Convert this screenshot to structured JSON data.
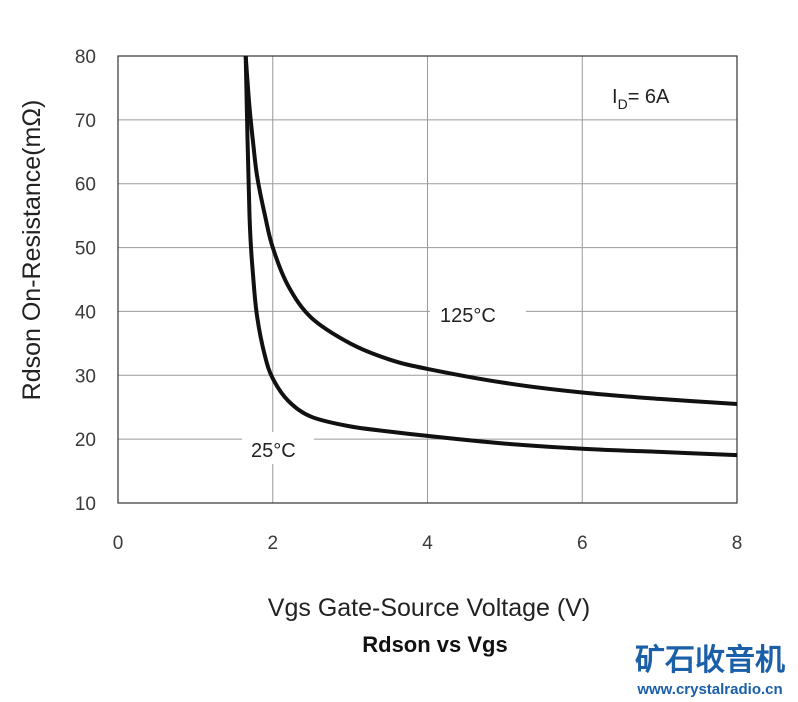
{
  "chart_data": {
    "type": "line",
    "title": "Rdson vs Vgs",
    "xlabel": "Vgs Gate-Source Voltage (V)",
    "ylabel": "Rdson On-Resistance(mΩ)",
    "xlim": [
      0,
      8
    ],
    "ylim": [
      10,
      80
    ],
    "x_ticks": [
      "0",
      "2",
      "4",
      "6",
      "8"
    ],
    "y_ticks": [
      "10",
      "20",
      "30",
      "40",
      "50",
      "60",
      "70",
      "80"
    ],
    "grid": true,
    "annotations": {
      "condition_main": "I",
      "condition_sub": "D",
      "condition_rest": "= 6A"
    },
    "series": [
      {
        "name": "125°C",
        "x": [
          1.65,
          1.7,
          1.75,
          1.8,
          1.9,
          2.0,
          2.2,
          2.5,
          3.0,
          3.5,
          4.0,
          5.0,
          6.0,
          7.0,
          8.0
        ],
        "y": [
          80,
          72,
          66,
          61,
          55,
          50,
          44,
          39,
          35,
          32.5,
          31,
          28.8,
          27.3,
          26.3,
          25.5
        ]
      },
      {
        "name": "25°C",
        "x": [
          1.65,
          1.7,
          1.75,
          1.8,
          1.9,
          2.0,
          2.2,
          2.5,
          3.0,
          3.5,
          4.0,
          5.0,
          6.0,
          7.0,
          8.0
        ],
        "y": [
          80,
          55,
          45,
          39,
          33,
          29.5,
          26,
          23.5,
          22,
          21.2,
          20.5,
          19.3,
          18.5,
          18,
          17.5
        ]
      }
    ]
  },
  "watermark": {
    "site_name": "矿石收音机",
    "url": "www.crystalradio.cn",
    "color": "#1b5fa8"
  }
}
